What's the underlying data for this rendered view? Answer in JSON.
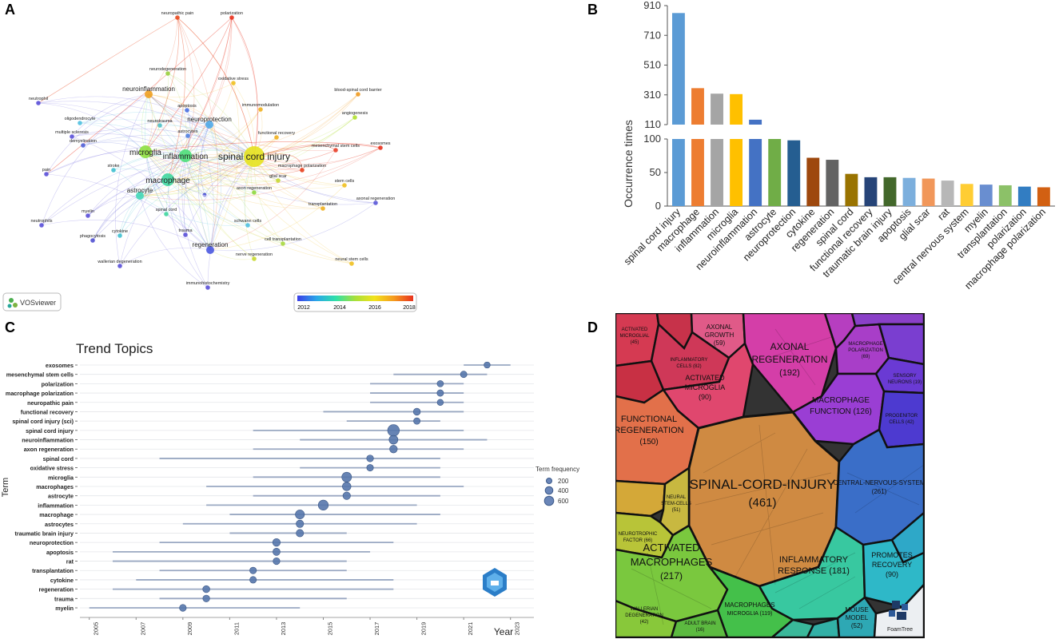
{
  "panels": {
    "a": "A",
    "b": "B",
    "c": "C",
    "d": "D"
  },
  "network": {
    "badge": "VOSviewer",
    "colorbar_ticks": [
      "2012",
      "2014",
      "2016",
      "2018"
    ],
    "colorbar_colors": [
      "#3b3ee8",
      "#2aa7e8",
      "#2fe0a8",
      "#a8e03a",
      "#f2e21c",
      "#f59a1e",
      "#e8321e"
    ],
    "nodes": [
      {
        "label": "spinal cord injury",
        "tier": "huge",
        "color": "#e6e21f"
      },
      {
        "label": "inflammation",
        "tier": "big",
        "color": "#4ee07a"
      },
      {
        "label": "microglia",
        "tier": "big",
        "color": "#8ee040"
      },
      {
        "label": "macrophage",
        "tier": "big",
        "color": "#3fd7a0"
      },
      {
        "label": "neuroinflammation",
        "tier": "mid",
        "color": "#f0a020"
      },
      {
        "label": "neuroprotection",
        "tier": "mid",
        "color": "#4ea8e8"
      },
      {
        "label": "astrocyte",
        "tier": "mid",
        "color": "#42d8b8"
      },
      {
        "label": "regeneration",
        "tier": "mid",
        "color": "#4a58e0"
      },
      {
        "label": "neuropathic pain",
        "tier": "small",
        "color": "#e84a1e"
      },
      {
        "label": "polarization",
        "tier": "small",
        "color": "#e8321e"
      },
      {
        "label": "neurodegeneration",
        "tier": "small",
        "color": "#9ad040"
      },
      {
        "label": "oxidative stress",
        "tier": "small",
        "color": "#f0c020"
      },
      {
        "label": "blood-spinal cord barrier",
        "tier": "small",
        "color": "#f09a20"
      },
      {
        "label": "neutrophil",
        "tier": "small",
        "color": "#5a50d8"
      },
      {
        "label": "apoptosis",
        "tier": "small",
        "color": "#4a70e0"
      },
      {
        "label": "immunomodulation",
        "tier": "small",
        "color": "#f0b020"
      },
      {
        "label": "oligodendrocyte",
        "tier": "small",
        "color": "#50c0e0"
      },
      {
        "label": "neurotrauma",
        "tier": "small",
        "color": "#50c0c8"
      },
      {
        "label": "angiogenesis",
        "tier": "small",
        "color": "#b0e030"
      },
      {
        "label": "astrocytes",
        "tier": "small",
        "color": "#5080e0"
      },
      {
        "label": "multiple sclerosis",
        "tier": "small",
        "color": "#5a50d8"
      },
      {
        "label": "functional recovery",
        "tier": "small",
        "color": "#f0b020"
      },
      {
        "label": "demyelination",
        "tier": "small",
        "color": "#5060d8"
      },
      {
        "label": "mesenchymal stem cells",
        "tier": "small",
        "color": "#e8402a"
      },
      {
        "label": "exosomes",
        "tier": "small",
        "color": "#e8321e"
      },
      {
        "label": "macrophage polarization",
        "tier": "small",
        "color": "#e8401e"
      },
      {
        "label": "pain",
        "tier": "small",
        "color": "#5a50d8"
      },
      {
        "label": "stroke",
        "tier": "small",
        "color": "#40c0d0"
      },
      {
        "label": "glial scar",
        "tier": "small",
        "color": "#c8d830"
      },
      {
        "label": "stem cells",
        "tier": "small",
        "color": "#f0c020"
      },
      {
        "label": "axon regeneration",
        "tier": "small",
        "color": "#8fd840"
      },
      {
        "label": "tbi",
        "tier": "tiny",
        "color": "#3a40d0"
      },
      {
        "label": "axonal regeneration",
        "tier": "small",
        "color": "#5a58d8"
      },
      {
        "label": "myelin",
        "tier": "small",
        "color": "#5a50d8"
      },
      {
        "label": "transplantation",
        "tier": "small",
        "color": "#f0b020"
      },
      {
        "label": "spinal cord",
        "tier": "small",
        "color": "#3fd7a0"
      },
      {
        "label": "schwann cells",
        "tier": "small",
        "color": "#50c0e0"
      },
      {
        "label": "cell transplantation",
        "tier": "small",
        "color": "#a8d840"
      },
      {
        "label": "neutrophils",
        "tier": "small",
        "color": "#5a50d8"
      },
      {
        "label": "cytokine",
        "tier": "small",
        "color": "#40c0d0"
      },
      {
        "label": "trauma",
        "tier": "small",
        "color": "#5a50d8"
      },
      {
        "label": "nerve regeneration",
        "tier": "small",
        "color": "#c8d830"
      },
      {
        "label": "phagocytosis",
        "tier": "small",
        "color": "#5050d0"
      },
      {
        "label": "neural stem cells",
        "tier": "small",
        "color": "#f0c020"
      },
      {
        "label": "wallerian degeneration",
        "tier": "small",
        "color": "#5a50d8"
      },
      {
        "label": "immunohistochemistry",
        "tier": "small",
        "color": "#5a50d8"
      }
    ]
  },
  "chart_data": [
    {
      "type": "bar",
      "title": "",
      "ylabel": "Occurrence times",
      "xlabel": "",
      "broken_axis": true,
      "ylim_lower": [
        0,
        100
      ],
      "ylim_upper": [
        110,
        910
      ],
      "yticks_lower": [
        "0",
        "50",
        "100"
      ],
      "yticks_upper": [
        "110",
        "310",
        "510",
        "710",
        "910"
      ],
      "categories": [
        "spinal cord injury",
        "macrophage",
        "inflammation",
        "microglia",
        "neuroinflammation",
        "astrocyte",
        "neuroprotection",
        "cytokine",
        "regeneration",
        "spinal cord",
        "functional recovery",
        "traumatic brain injury",
        "apoptosis",
        "glial scar",
        "rat",
        "central nervous system",
        "myelin",
        "transplantation",
        "polarization",
        "macrophage polarization"
      ],
      "values": [
        860,
        355,
        318,
        315,
        143,
        100,
        98,
        72,
        69,
        48,
        43,
        43,
        42,
        41,
        38,
        33,
        32,
        31,
        29,
        28
      ],
      "colors": [
        "#5b9bd5",
        "#ed7d31",
        "#a5a5a5",
        "#ffc000",
        "#4472c4",
        "#70ad47",
        "#255e91",
        "#9e480e",
        "#636363",
        "#997300",
        "#264478",
        "#43682b",
        "#7cafdd",
        "#f1975a",
        "#b7b7b7",
        "#ffcd33",
        "#698ed0",
        "#8cc168",
        "#327dc2",
        "#d26012"
      ]
    },
    {
      "type": "scatter",
      "title": "Trend Topics",
      "xlabel": "Year",
      "ylabel": "Term",
      "xlim": [
        2004.6,
        2024.0
      ],
      "xticks": [
        "2005",
        "2007",
        "2009",
        "2011",
        "2013",
        "2015",
        "2017",
        "2019",
        "2021",
        "2023"
      ],
      "legend": {
        "title": "Term frequency",
        "entries": [
          "200",
          "400",
          "600"
        ],
        "position": "right"
      },
      "terms": [
        "exosomes",
        "mesenchymal stem cells",
        "polarization",
        "macrophage polarization",
        "neuropathic pain",
        "functional recovery",
        "spinal cord injury (sci)",
        "spinal cord injury",
        "neuroinflammation",
        "axon regeneration",
        "spinal cord",
        "oxidative stress",
        "microglia",
        "macrophages",
        "astrocyte",
        "inflammation",
        "macrophage",
        "astrocytes",
        "traumatic brain injury",
        "neuroprotection",
        "apoptosis",
        "rat",
        "transplantation",
        "cytokine",
        "regeneration",
        "trauma",
        "myelin"
      ],
      "median_year": [
        2022,
        2021,
        2020,
        2020,
        2020,
        2019,
        2019,
        2018,
        2018,
        2018,
        2017,
        2017,
        2016,
        2016,
        2016,
        2015,
        2014,
        2014,
        2014,
        2013,
        2013,
        2013,
        2012,
        2012,
        2010,
        2010,
        2009
      ],
      "q1_year": [
        2021,
        2018,
        2017,
        2017,
        2017,
        2015,
        2016,
        2012,
        2014,
        2012,
        2008,
        2014,
        2012,
        2010,
        2012,
        2010,
        2011,
        2009,
        2011,
        2008,
        2006,
        2006,
        2008,
        2007,
        2006,
        2008,
        2005
      ],
      "q3_year": [
        2023,
        2022,
        2021,
        2021,
        2021,
        2021,
        2020,
        2021,
        2022,
        2021,
        2020,
        2020,
        2020,
        2021,
        2020,
        2019,
        2020,
        2019,
        2016,
        2018,
        2017,
        2016,
        2016,
        2018,
        2018,
        2016,
        2014
      ],
      "frequency": [
        70,
        90,
        80,
        90,
        70,
        120,
        90,
        660,
        280,
        170,
        110,
        100,
        380,
        250,
        160,
        420,
        300,
        160,
        150,
        170,
        140,
        110,
        100,
        100,
        120,
        110,
        110
      ]
    },
    {
      "type": "treemap",
      "title": "",
      "badge": "FoamTree",
      "categories": [
        "SPINAL-CORD-INJURY",
        "ACTIVATED MACROPHAGES",
        "AXONAL REGENERATION",
        "INFLAMMATORY RESPONSE",
        "CENTRAL-NERVOUS-SYSTEM",
        "FUNCTIONAL REGENERATION",
        "MACROPHAGE FUNCTION",
        "MACROPHAGES MICROGLIA",
        "ACTIVATED MICROGLIA",
        "PROMOTES RECOVERY",
        "MACROPHAGE POLARIZATION",
        "AXONAL GROWTH",
        "MOUSE MODEL",
        "ACTIVATED MICROGLIAL",
        "INFLAMMATORY CELLS",
        "WALLERIAN DEGENERATION",
        "PROGENITOR CELLS",
        "NEURAL STEM-CELLS",
        "SENSORY NEURONS",
        "NEUROTROPHIC FACTOR",
        "ADULT BRAIN"
      ],
      "values": [
        461,
        217,
        192,
        181,
        261,
        150,
        126,
        119,
        90,
        90,
        69,
        59,
        52,
        45,
        82,
        42,
        42,
        51,
        19,
        66,
        16
      ],
      "labels": [
        "SPINAL-CORD-INJURY",
        "(461)",
        "ACTIVATED",
        "MACROPHAGES",
        "(217)",
        "AXONAL",
        "REGENERATION",
        "(192)",
        "INFLAMMATORY",
        "RESPONSE (181)",
        "CENTRAL-NERVOUS-SYSTEM",
        "(261)",
        "FUNCTIONAL",
        "(150)",
        "MACROPHAGE",
        "FUNCTION (126)",
        "MACROPHAGES",
        "MICROGLIA (119)",
        "ACTIVATED",
        "MICROGLIA",
        "(90)",
        "PROMOTES",
        "RECOVERY",
        "(90)",
        "MACROPHAGE",
        "POLARIZATION",
        "(69)",
        "AXONAL",
        "GROWTH",
        "(59)",
        "MOUSE",
        "MODEL",
        "(52)",
        "ACTIVATED",
        "MICROGLIAL",
        "(45)",
        "INFLAMMATORY",
        "CELLS (82)",
        "WALLERIAN",
        "DEGENERATION",
        "(42)",
        "PROGENITOR",
        "CELLS (42)",
        "NEURAL",
        "STEM-CELLS",
        "(51)",
        "SENSORY",
        "NEURONS (19)",
        "NEUROTROPHIC",
        "FACTOR (66)",
        "ADULT BRAIN",
        "(16)",
        "REGENERATION"
      ]
    }
  ]
}
